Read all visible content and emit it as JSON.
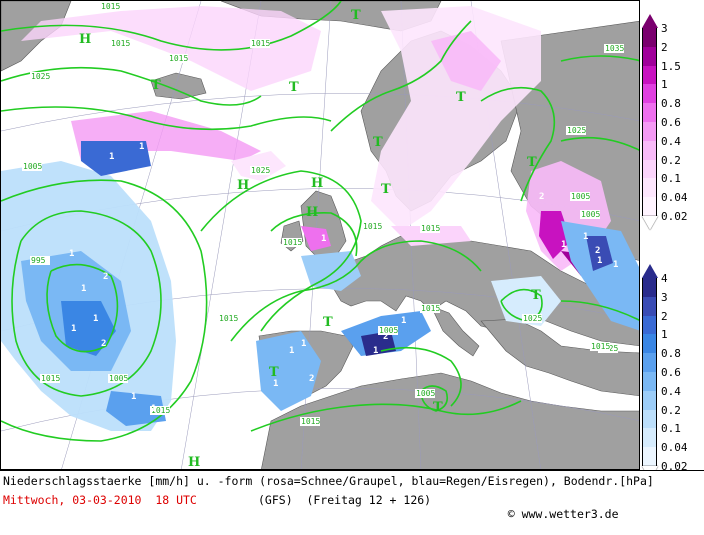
{
  "caption": {
    "line1": "Niederschlagsstaerke [mm/h] u. -form (rosa=Schnee/Graupel, blau=Regen/Eisregen), Bodendr.[hPa]",
    "date": "Mittwoch, 03-03-2010  18 UTC",
    "model": "(GFS)  (Freitag 12 + 126)",
    "copyright": "www.wetter3.de",
    "date_color": "#dd0000"
  },
  "legend_snow": {
    "label": "Schnee/Graupel",
    "ticks": [
      "3",
      "2",
      "1.5",
      "1",
      "0.8",
      "0.6",
      "0.4",
      "0.2",
      "0.1",
      "0.04",
      "0.02"
    ],
    "colors": [
      "#7a006e",
      "#a0009a",
      "#c812c0",
      "#e040e0",
      "#ee70ee",
      "#f49af4",
      "#f8baf8",
      "#fbd4fb",
      "#fde6fd",
      "#fff4ff"
    ]
  },
  "legend_rain": {
    "label": "Regen/Eisregen",
    "ticks": [
      "4",
      "3",
      "2",
      "1",
      "0.8",
      "0.6",
      "0.4",
      "0.2",
      "0.1",
      "0.04",
      "0.02"
    ],
    "colors": [
      "#2a2c8c",
      "#3a4cb4",
      "#3a6ad4",
      "#3a86e4",
      "#5aa0ee",
      "#7ab8f4",
      "#9ccdf8",
      "#bcdffb",
      "#d6ecfd",
      "#ecf6ff"
    ]
  },
  "map": {
    "pressure_centers": [
      {
        "type": "H",
        "label": "H"
      },
      {
        "type": "H",
        "label": "H"
      },
      {
        "type": "H",
        "label": "H"
      },
      {
        "type": "H",
        "label": "H"
      },
      {
        "type": "T",
        "label": "T"
      },
      {
        "type": "T",
        "label": "T"
      },
      {
        "type": "T",
        "label": "T"
      },
      {
        "type": "T",
        "label": "T"
      },
      {
        "type": "T",
        "label": "T"
      },
      {
        "type": "T",
        "label": "T"
      },
      {
        "type": "T",
        "label": "T"
      },
      {
        "type": "T",
        "label": "T"
      },
      {
        "type": "T",
        "label": "T"
      },
      {
        "type": "T",
        "label": "T"
      },
      {
        "type": "T",
        "label": "T"
      },
      {
        "type": "H",
        "label": "H"
      }
    ],
    "isobar_labels": [
      "1015",
      "1015",
      "1025",
      "1015",
      "1015",
      "1025",
      "1015",
      "1005",
      "1035",
      "1025",
      "1025",
      "1005",
      "1015",
      "995",
      "1015",
      "1005",
      "1015",
      "1005",
      "1015",
      "1025",
      "1015",
      "1015",
      "1005",
      "1005",
      "1015",
      "1015"
    ],
    "precip_labels": [
      "1",
      "1",
      "2",
      "1",
      "1",
      "1",
      "2",
      "1",
      "1",
      "1",
      "1",
      "1",
      "1",
      "1",
      "2",
      "1",
      "1",
      "2",
      "1",
      "2",
      "1",
      "1",
      "2",
      "1",
      "1",
      "1"
    ],
    "colors": {
      "sea": "#ffffff",
      "land": "#a0a0a0",
      "isobar": "#22cc22",
      "grid": "#8888aa"
    }
  }
}
